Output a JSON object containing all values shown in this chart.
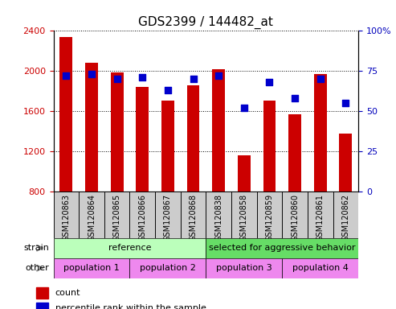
{
  "title": "GDS2399 / 144482_at",
  "samples": [
    "GSM120863",
    "GSM120864",
    "GSM120865",
    "GSM120866",
    "GSM120867",
    "GSM120868",
    "GSM120838",
    "GSM120858",
    "GSM120859",
    "GSM120860",
    "GSM120861",
    "GSM120862"
  ],
  "counts": [
    2340,
    2080,
    1990,
    1840,
    1710,
    1860,
    2020,
    1160,
    1710,
    1570,
    1970,
    1380
  ],
  "percentile_ranks": [
    72,
    73,
    70,
    71,
    63,
    70,
    72,
    52,
    68,
    58,
    70,
    55
  ],
  "ymin": 800,
  "ymax": 2400,
  "yticks_left": [
    800,
    1200,
    1600,
    2000,
    2400
  ],
  "yticks_right": [
    0,
    25,
    50,
    75,
    100
  ],
  "bar_color": "#cc0000",
  "dot_color": "#0000cc",
  "bar_width": 0.5,
  "ref_color": "#bbffbb",
  "sel_color": "#66dd66",
  "pop_color": "#ee88ee",
  "axis_color_left": "#cc0000",
  "axis_color_right": "#0000bb",
  "grid_linestyle": "dotted",
  "tick_bg_color": "#cccccc",
  "strain_arrow_color": "#888888",
  "label_fontsize": 8,
  "title_fontsize": 11
}
